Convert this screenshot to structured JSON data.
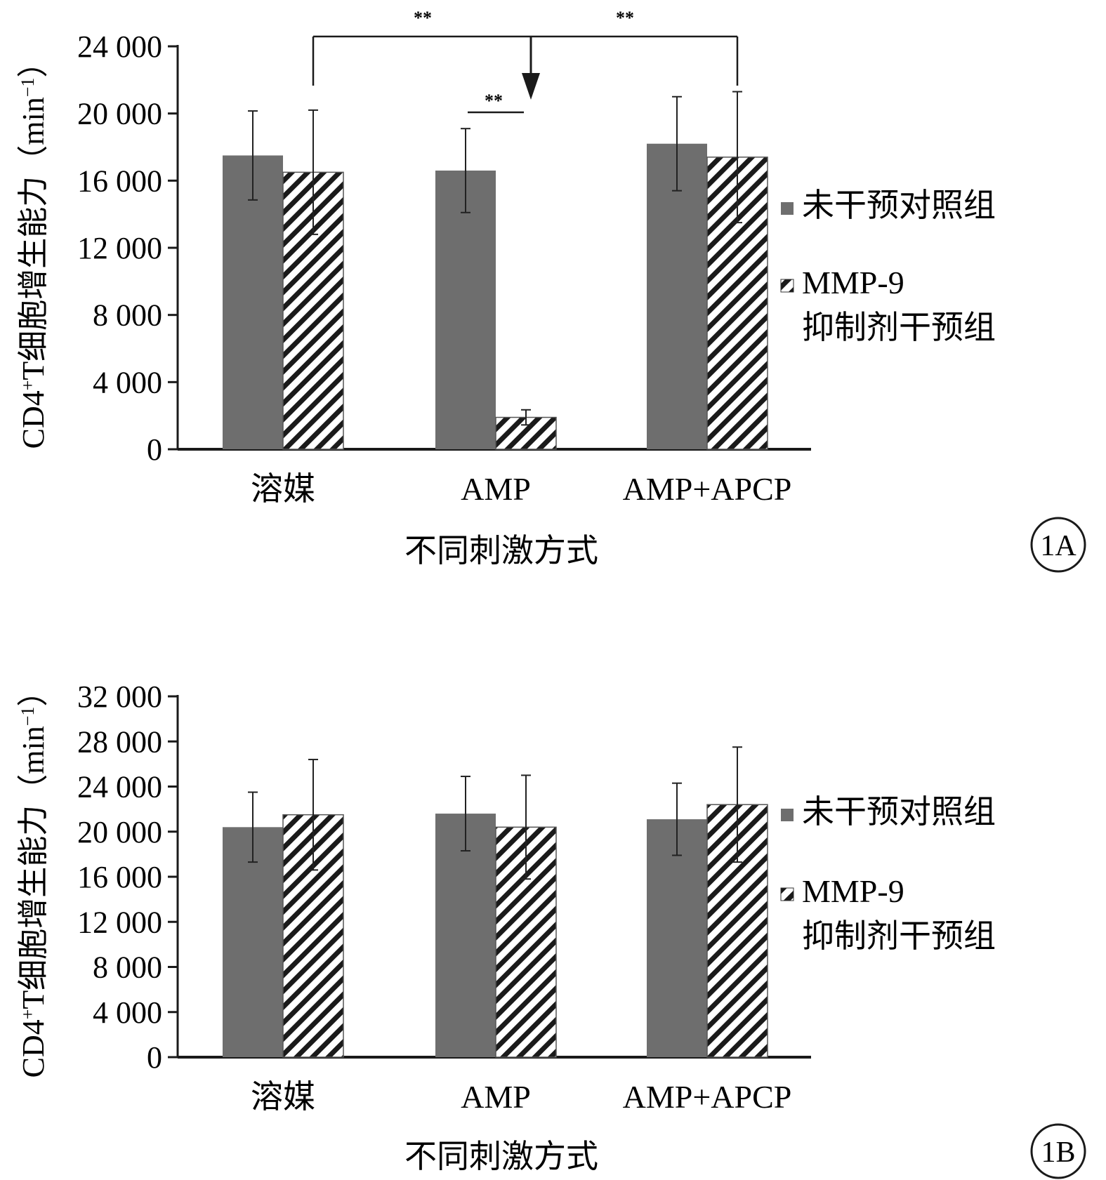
{
  "chart_data": [
    {
      "type": "bar",
      "panel_label": "1A",
      "categories": [
        "溶媒",
        "AMP",
        "AMP+APCP"
      ],
      "series": [
        {
          "name": "未干预对照组",
          "values": [
            17500,
            16600,
            18200
          ],
          "errors": [
            2650,
            2500,
            2800
          ]
        },
        {
          "name": "MMP-9 抑制剂干预组",
          "values": [
            16500,
            1900,
            17400
          ],
          "errors": [
            3700,
            450,
            3900
          ]
        }
      ],
      "xlabel": "不同刺激方式",
      "ylabel": "CD4+T细胞增生能力(min-1)",
      "ylim": [
        0,
        24000
      ],
      "yticks": [
        0,
        4000,
        8000,
        12000,
        16000,
        20000,
        24000
      ],
      "ytick_labels": [
        "0",
        "4 000",
        "8 000",
        "12 000",
        "16 000",
        "20 000",
        "24 000"
      ],
      "legend_position": "right",
      "annotations": [
        {
          "text": "**",
          "between": "AMP 未干预对照组 vs AMP MMP-9 抑制剂干预组"
        },
        {
          "text": "**",
          "between": "溶媒 vs AMP (MMP-9 抑制剂干预组)"
        },
        {
          "text": "**",
          "between": "AMP+APCP vs AMP (MMP-9 抑制剂干预组)"
        }
      ]
    },
    {
      "type": "bar",
      "panel_label": "1B",
      "categories": [
        "溶媒",
        "AMP",
        "AMP+APCP"
      ],
      "series": [
        {
          "name": "未干预对照组",
          "values": [
            20400,
            21600,
            21100
          ],
          "errors": [
            3100,
            3300,
            3200
          ]
        },
        {
          "name": "MMP-9 抑制剂干预组",
          "values": [
            21500,
            20400,
            22400
          ],
          "errors": [
            4900,
            4600,
            5100
          ]
        }
      ],
      "xlabel": "不同刺激方式",
      "ylabel": "CD4+T细胞增生能力(min-1)",
      "ylim": [
        0,
        32000
      ],
      "yticks": [
        0,
        4000,
        8000,
        12000,
        16000,
        20000,
        24000,
        28000,
        32000
      ],
      "ytick_labels": [
        "0",
        "4 000",
        "8 000",
        "12 000",
        "16 000",
        "20 000",
        "24 000",
        "28 000",
        "32 000"
      ],
      "legend_position": "right",
      "annotations": []
    }
  ],
  "text": {
    "star": "**",
    "ylabel_main": "CD4",
    "ylabel_sup": "+",
    "ylabel_rest": "T细胞增生能力",
    "ylabel_unit_open": "（min",
    "ylabel_unit_sup": "−1",
    "ylabel_unit_close": "）",
    "legend_line1": "未干预对照组",
    "legend_line2a": "MMP-9",
    "legend_line2b": "抑制剂干预组"
  },
  "colors": {
    "solid": "#6e6e6e",
    "hatch_line": "#1a1a1a",
    "axis": "#1a1a1a"
  }
}
